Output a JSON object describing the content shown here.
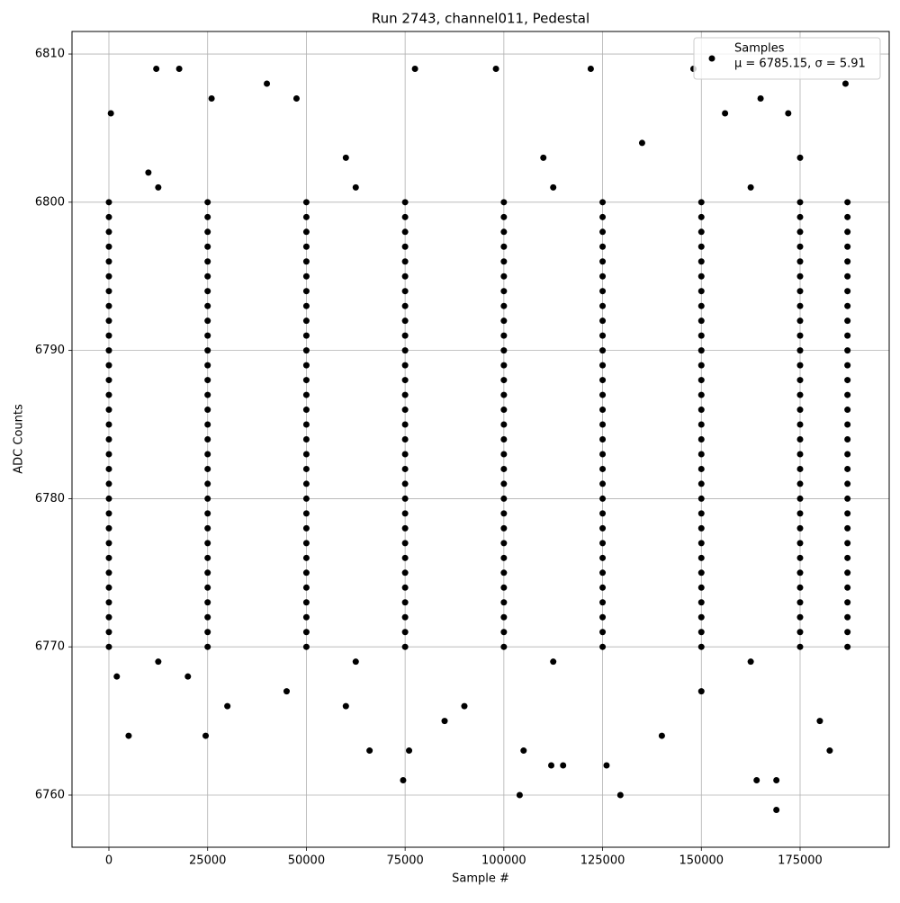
{
  "chart_data": {
    "type": "scatter",
    "title": "Run 2743, channel011, Pedestal",
    "x_label": "Sample #",
    "y_label": "ADC Counts",
    "xlim": [
      -9342,
      197560
    ],
    "ylim": [
      6756.48,
      6811.52
    ],
    "xticks": [
      0,
      25000,
      50000,
      75000,
      100000,
      125000,
      150000,
      175000
    ],
    "yticks": [
      6760,
      6770,
      6780,
      6790,
      6800,
      6810
    ],
    "grid": true,
    "legend": "upper right",
    "annotation": "μ = 6785.15, σ = 5.91",
    "series": [
      {
        "name": "Samples",
        "color": "#000000",
        "x": [
          0,
          25000,
          50000,
          75000,
          100000,
          125000,
          150000,
          175000,
          187000,
          0,
          25000,
          50000,
          75000,
          100000,
          125000,
          150000,
          175000,
          187000,
          0,
          25000,
          50000,
          75000,
          100000,
          125000,
          150000,
          175000,
          187000,
          0,
          25000,
          50000,
          75000,
          100000,
          125000,
          150000,
          175000,
          187000,
          0,
          25000,
          50000,
          75000,
          100000,
          125000,
          150000,
          175000,
          187000,
          0,
          25000,
          50000,
          75000,
          100000,
          125000,
          150000,
          175000,
          187000,
          0,
          25000,
          50000,
          75000,
          100000,
          125000,
          150000,
          175000,
          187000,
          0,
          25000,
          50000,
          75000,
          100000,
          125000,
          150000,
          175000,
          187000,
          0,
          25000,
          50000,
          75000,
          100000,
          125000,
          150000,
          175000,
          187000,
          0,
          25000,
          50000,
          75000,
          100000,
          125000,
          150000,
          175000,
          187000,
          0,
          25000,
          50000,
          75000,
          100000,
          125000,
          150000,
          175000,
          187000,
          0,
          25000,
          50000,
          75000,
          100000,
          125000,
          150000,
          175000,
          187000,
          0,
          25000,
          50000,
          75000,
          100000,
          125000,
          150000,
          175000,
          187000,
          0,
          25000,
          50000,
          75000,
          100000,
          125000,
          150000,
          175000,
          187000,
          0,
          25000,
          50000,
          75000,
          100000,
          125000,
          150000,
          175000,
          187000,
          0,
          25000,
          50000,
          75000,
          100000,
          125000,
          150000,
          175000,
          187000,
          0,
          25000,
          50000,
          75000,
          100000,
          125000,
          150000,
          175000,
          187000,
          0,
          25000,
          50000,
          75000,
          100000,
          125000,
          150000,
          175000,
          187000,
          0,
          25000,
          50000,
          75000,
          100000,
          125000,
          150000,
          175000,
          187000,
          0,
          25000,
          50000,
          75000,
          100000,
          125000,
          150000,
          175000,
          187000,
          0,
          25000,
          50000,
          75000,
          100000,
          125000,
          150000,
          175000,
          187000,
          0,
          25000,
          50000,
          75000,
          100000,
          125000,
          150000,
          175000,
          187000,
          0,
          25000,
          50000,
          75000,
          100000,
          125000,
          150000,
          175000,
          187000,
          0,
          25000,
          50000,
          75000,
          100000,
          125000,
          150000,
          175000,
          187000,
          0,
          25000,
          50000,
          75000,
          100000,
          125000,
          150000,
          175000,
          187000,
          0,
          25000,
          50000,
          75000,
          100000,
          125000,
          150000,
          175000,
          187000,
          0,
          25000,
          50000,
          75000,
          100000,
          125000,
          150000,
          175000,
          187000,
          0,
          25000,
          50000,
          75000,
          100000,
          125000,
          150000,
          175000,
          187000,
          0,
          25000,
          50000,
          75000,
          100000,
          125000,
          150000,
          175000,
          187000,
          0,
          25000,
          50000,
          75000,
          100000,
          125000,
          150000,
          175000,
          187000,
          0,
          25000,
          50000,
          75000,
          100000,
          125000,
          150000,
          175000,
          187000,
          12500,
          62500,
          112500,
          162500,
          12500,
          62500,
          112500,
          162500,
          500,
          12000,
          17800,
          40000,
          77500,
          98000,
          122000,
          148000,
          186500,
          156000,
          172000,
          165000,
          26000,
          47500,
          5000,
          24500,
          66000,
          74500,
          76000,
          104000,
          105000,
          112000,
          115000,
          126000,
          129500,
          164000,
          169000,
          169000,
          182500,
          30000,
          60000,
          90000,
          140000,
          10000,
          60000,
          110000,
          135000,
          175000,
          2000,
          20000,
          45000,
          85000,
          150000,
          180000
        ],
        "values": [
          6770,
          6770,
          6770,
          6770,
          6770,
          6770,
          6770,
          6770,
          6770,
          6771,
          6771,
          6771,
          6771,
          6771,
          6771,
          6771,
          6771,
          6771,
          6772,
          6772,
          6772,
          6772,
          6772,
          6772,
          6772,
          6772,
          6772,
          6773,
          6773,
          6773,
          6773,
          6773,
          6773,
          6773,
          6773,
          6773,
          6774,
          6774,
          6774,
          6774,
          6774,
          6774,
          6774,
          6774,
          6774,
          6775,
          6775,
          6775,
          6775,
          6775,
          6775,
          6775,
          6775,
          6775,
          6776,
          6776,
          6776,
          6776,
          6776,
          6776,
          6776,
          6776,
          6776,
          6777,
          6777,
          6777,
          6777,
          6777,
          6777,
          6777,
          6777,
          6777,
          6778,
          6778,
          6778,
          6778,
          6778,
          6778,
          6778,
          6778,
          6778,
          6779,
          6779,
          6779,
          6779,
          6779,
          6779,
          6779,
          6779,
          6779,
          6780,
          6780,
          6780,
          6780,
          6780,
          6780,
          6780,
          6780,
          6780,
          6781,
          6781,
          6781,
          6781,
          6781,
          6781,
          6781,
          6781,
          6781,
          6782,
          6782,
          6782,
          6782,
          6782,
          6782,
          6782,
          6782,
          6782,
          6783,
          6783,
          6783,
          6783,
          6783,
          6783,
          6783,
          6783,
          6783,
          6784,
          6784,
          6784,
          6784,
          6784,
          6784,
          6784,
          6784,
          6784,
          6785,
          6785,
          6785,
          6785,
          6785,
          6785,
          6785,
          6785,
          6785,
          6786,
          6786,
          6786,
          6786,
          6786,
          6786,
          6786,
          6786,
          6786,
          6787,
          6787,
          6787,
          6787,
          6787,
          6787,
          6787,
          6787,
          6787,
          6788,
          6788,
          6788,
          6788,
          6788,
          6788,
          6788,
          6788,
          6788,
          6789,
          6789,
          6789,
          6789,
          6789,
          6789,
          6789,
          6789,
          6789,
          6790,
          6790,
          6790,
          6790,
          6790,
          6790,
          6790,
          6790,
          6790,
          6791,
          6791,
          6791,
          6791,
          6791,
          6791,
          6791,
          6791,
          6791,
          6792,
          6792,
          6792,
          6792,
          6792,
          6792,
          6792,
          6792,
          6792,
          6793,
          6793,
          6793,
          6793,
          6793,
          6793,
          6793,
          6793,
          6793,
          6794,
          6794,
          6794,
          6794,
          6794,
          6794,
          6794,
          6794,
          6794,
          6795,
          6795,
          6795,
          6795,
          6795,
          6795,
          6795,
          6795,
          6795,
          6796,
          6796,
          6796,
          6796,
          6796,
          6796,
          6796,
          6796,
          6796,
          6797,
          6797,
          6797,
          6797,
          6797,
          6797,
          6797,
          6797,
          6797,
          6798,
          6798,
          6798,
          6798,
          6798,
          6798,
          6798,
          6798,
          6798,
          6799,
          6799,
          6799,
          6799,
          6799,
          6799,
          6799,
          6799,
          6799,
          6800,
          6800,
          6800,
          6800,
          6800,
          6800,
          6800,
          6800,
          6800,
          6801,
          6801,
          6801,
          6801,
          6769,
          6769,
          6769,
          6769,
          6806,
          6809,
          6809,
          6808,
          6809,
          6809,
          6809,
          6809,
          6808,
          6806,
          6806,
          6807,
          6807,
          6807,
          6764,
          6764,
          6763,
          6761,
          6763,
          6760,
          6763,
          6762,
          6762,
          6762,
          6760,
          6761,
          6759,
          6761,
          6763,
          6766,
          6766,
          6766,
          6764,
          6802,
          6803,
          6803,
          6804,
          6803,
          6768,
          6768,
          6767,
          6765,
          6767,
          6765
        ]
      }
    ]
  }
}
